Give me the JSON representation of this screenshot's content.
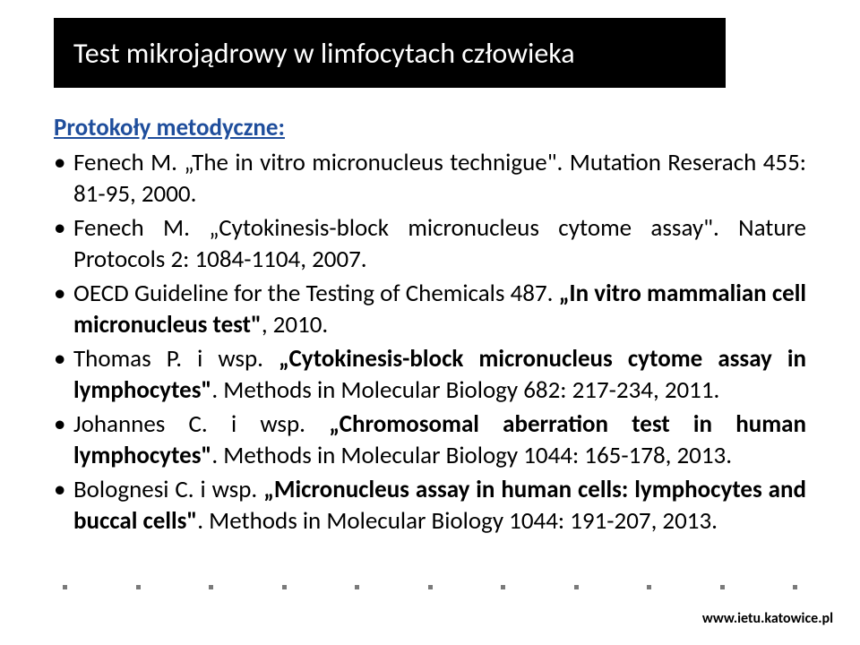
{
  "title": "Test mikrojądrowy w limfocytach człowieka",
  "section_heading": "Protokoły metodyczne:",
  "bullets": [
    {
      "author": "Fenech M. ",
      "quoted": "„The in vitro micronucleus technigue\".",
      "tail": " Mutation Reserach 455: 81-95, 2000."
    },
    {
      "author": "Fenech M. ",
      "quoted": "„Cytokinesis-block micronucleus cytome assay\".",
      "tail": " Nature Protocols 2: 1084-1104, 2007."
    },
    {
      "author": "OECD Guideline for the Testing of Chemicals 487. ",
      "quoted": "„In vitro mammalian cell micronucleus test\"",
      "tail": ", 2010."
    },
    {
      "author": "Thomas P. i wsp. ",
      "quoted": "„Cytokinesis-block micronucleus cytome assay in lymphocytes\"",
      "tail": ". Methods in Molecular Biology 682: 217-234, 2011."
    },
    {
      "author": "Johannes C. i wsp. ",
      "quoted": "„Chromosomal aberration test in human lymphocytes\"",
      "tail": ". Methods in Molecular Biology 1044: 165-178, 2013."
    },
    {
      "author": "Bolognesi C. i wsp. ",
      "quoted": "„Micronucleus assay in human cells: lymphocytes and buccal cells\"",
      "tail": ". Methods in Molecular Biology 1044: 191-207, 2013."
    }
  ],
  "footer_url": "www.ietu.katowice.pl",
  "dot_count": 11,
  "styling": {
    "title_bg": "#000000",
    "title_color": "#ffffff",
    "heading_color": "#1f4e9c",
    "body_color": "#000000",
    "dot_color": "#7a7a7a",
    "title_fontsize": 32,
    "body_fontsize": 27,
    "footer_fontsize": 16
  }
}
